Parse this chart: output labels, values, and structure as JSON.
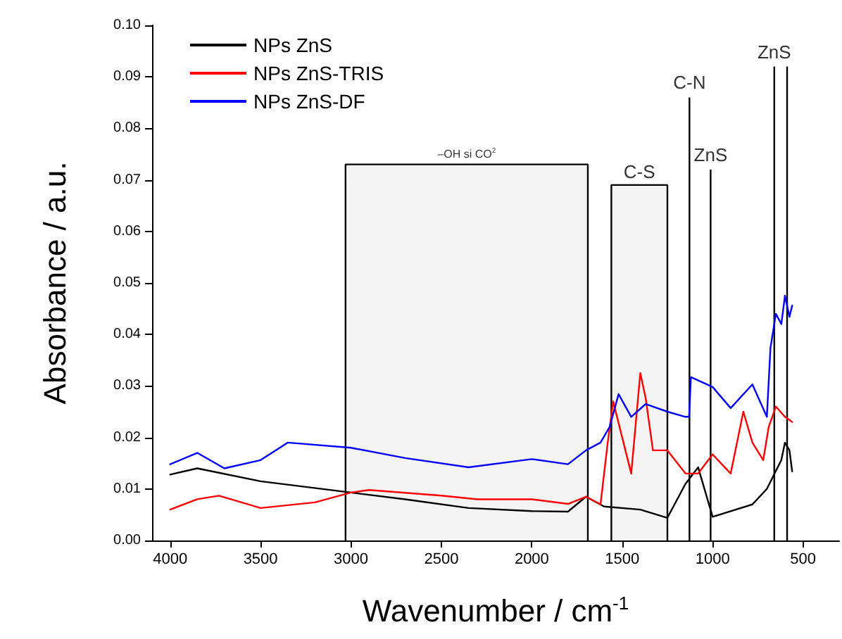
{
  "chart_data": {
    "type": "line",
    "xlabel": "Wavenumber / cm$^{-1}$",
    "ylabel": "Absorbance / a.u.",
    "xlim": [
      4100,
      300
    ],
    "xticks": [
      4000,
      3500,
      3000,
      2500,
      2000,
      1500,
      1000,
      500
    ],
    "ylim": [
      0,
      0.1
    ],
    "yticks": [
      {
        "value": 0,
        "label": "0.00"
      },
      {
        "value": 0.01,
        "label": "0.01"
      },
      {
        "value": 0.02,
        "label": "0.02"
      },
      {
        "value": 0.03,
        "label": "0.03"
      },
      {
        "value": 0.04,
        "label": "0.04"
      },
      {
        "value": 0.05,
        "label": "0.05"
      },
      {
        "value": 0.06,
        "label": "0.06"
      },
      {
        "value": 0.07,
        "label": "0.07"
      },
      {
        "value": 0.08,
        "label": "0.08"
      },
      {
        "value": 0.09,
        "label": "0.09"
      },
      {
        "value": 0.1,
        "label": "0.10"
      }
    ],
    "grid": false,
    "legend": "top left",
    "marker": "none",
    "line_style": "solid",
    "series": [
      {
        "name": "NPs ZnS",
        "color": "#000000",
        "x": [
          4000,
          3850,
          3500,
          3000,
          2700,
          2350,
          2000,
          1800,
          1700,
          1600,
          1400,
          1250,
          1150,
          1080,
          1000,
          900,
          780,
          700,
          620,
          600,
          575,
          560
        ],
        "values": [
          0.0128,
          0.014,
          0.0115,
          0.0093,
          0.008,
          0.0063,
          0.0057,
          0.0056,
          0.0085,
          0.0066,
          0.006,
          0.0044,
          0.011,
          0.0142,
          0.0046,
          0.0057,
          0.007,
          0.01,
          0.0156,
          0.019,
          0.0175,
          0.0134
        ]
      },
      {
        "name": "NPs ZnS-TRIS",
        "color": "#ff0000",
        "x": [
          4000,
          3850,
          3730,
          3500,
          3200,
          3000,
          2900,
          2500,
          2300,
          2000,
          1800,
          1700,
          1620,
          1580,
          1550,
          1500,
          1450,
          1400,
          1370,
          1330,
          1250,
          1150,
          1080,
          1000,
          900,
          830,
          780,
          720,
          690,
          650,
          600,
          560
        ],
        "values": [
          0.006,
          0.008,
          0.0087,
          0.0063,
          0.0074,
          0.0093,
          0.0098,
          0.0087,
          0.008,
          0.008,
          0.0071,
          0.0085,
          0.007,
          0.019,
          0.027,
          0.02,
          0.013,
          0.0325,
          0.0276,
          0.0175,
          0.0175,
          0.013,
          0.013,
          0.0167,
          0.013,
          0.025,
          0.019,
          0.0156,
          0.022,
          0.026,
          0.024,
          0.023
        ]
      },
      {
        "name": "NPs ZnS-DF",
        "color": "#0000ff",
        "x": [
          4000,
          3850,
          3700,
          3500,
          3350,
          3000,
          2700,
          2350,
          2000,
          1800,
          1700,
          1620,
          1570,
          1520,
          1450,
          1370,
          1250,
          1150,
          1130,
          1120,
          1000,
          900,
          780,
          700,
          680,
          650,
          620,
          600,
          575,
          560
        ],
        "values": [
          0.0148,
          0.017,
          0.014,
          0.0156,
          0.019,
          0.018,
          0.016,
          0.0142,
          0.0158,
          0.0148,
          0.0175,
          0.019,
          0.022,
          0.0284,
          0.024,
          0.0265,
          0.025,
          0.024,
          0.024,
          0.0317,
          0.0298,
          0.0257,
          0.0303,
          0.024,
          0.0374,
          0.044,
          0.042,
          0.0475,
          0.0434,
          0.0456
        ]
      }
    ],
    "bands": [
      {
        "axis": "x",
        "from": 3030,
        "to": 1690,
        "label": "–OH si CO$^{2}$"
      },
      {
        "axis": "x",
        "from": 1560,
        "to": 1250,
        "label": "C-S"
      }
    ],
    "ref_lines": [
      {
        "axis": "x",
        "value": 1128,
        "label": "C-N"
      },
      {
        "axis": "x",
        "value": 1011,
        "label": "ZnS"
      },
      {
        "axis": "x",
        "value": 659,
        "label": "ZnS"
      },
      {
        "axis": "x",
        "value": 588
      }
    ]
  }
}
